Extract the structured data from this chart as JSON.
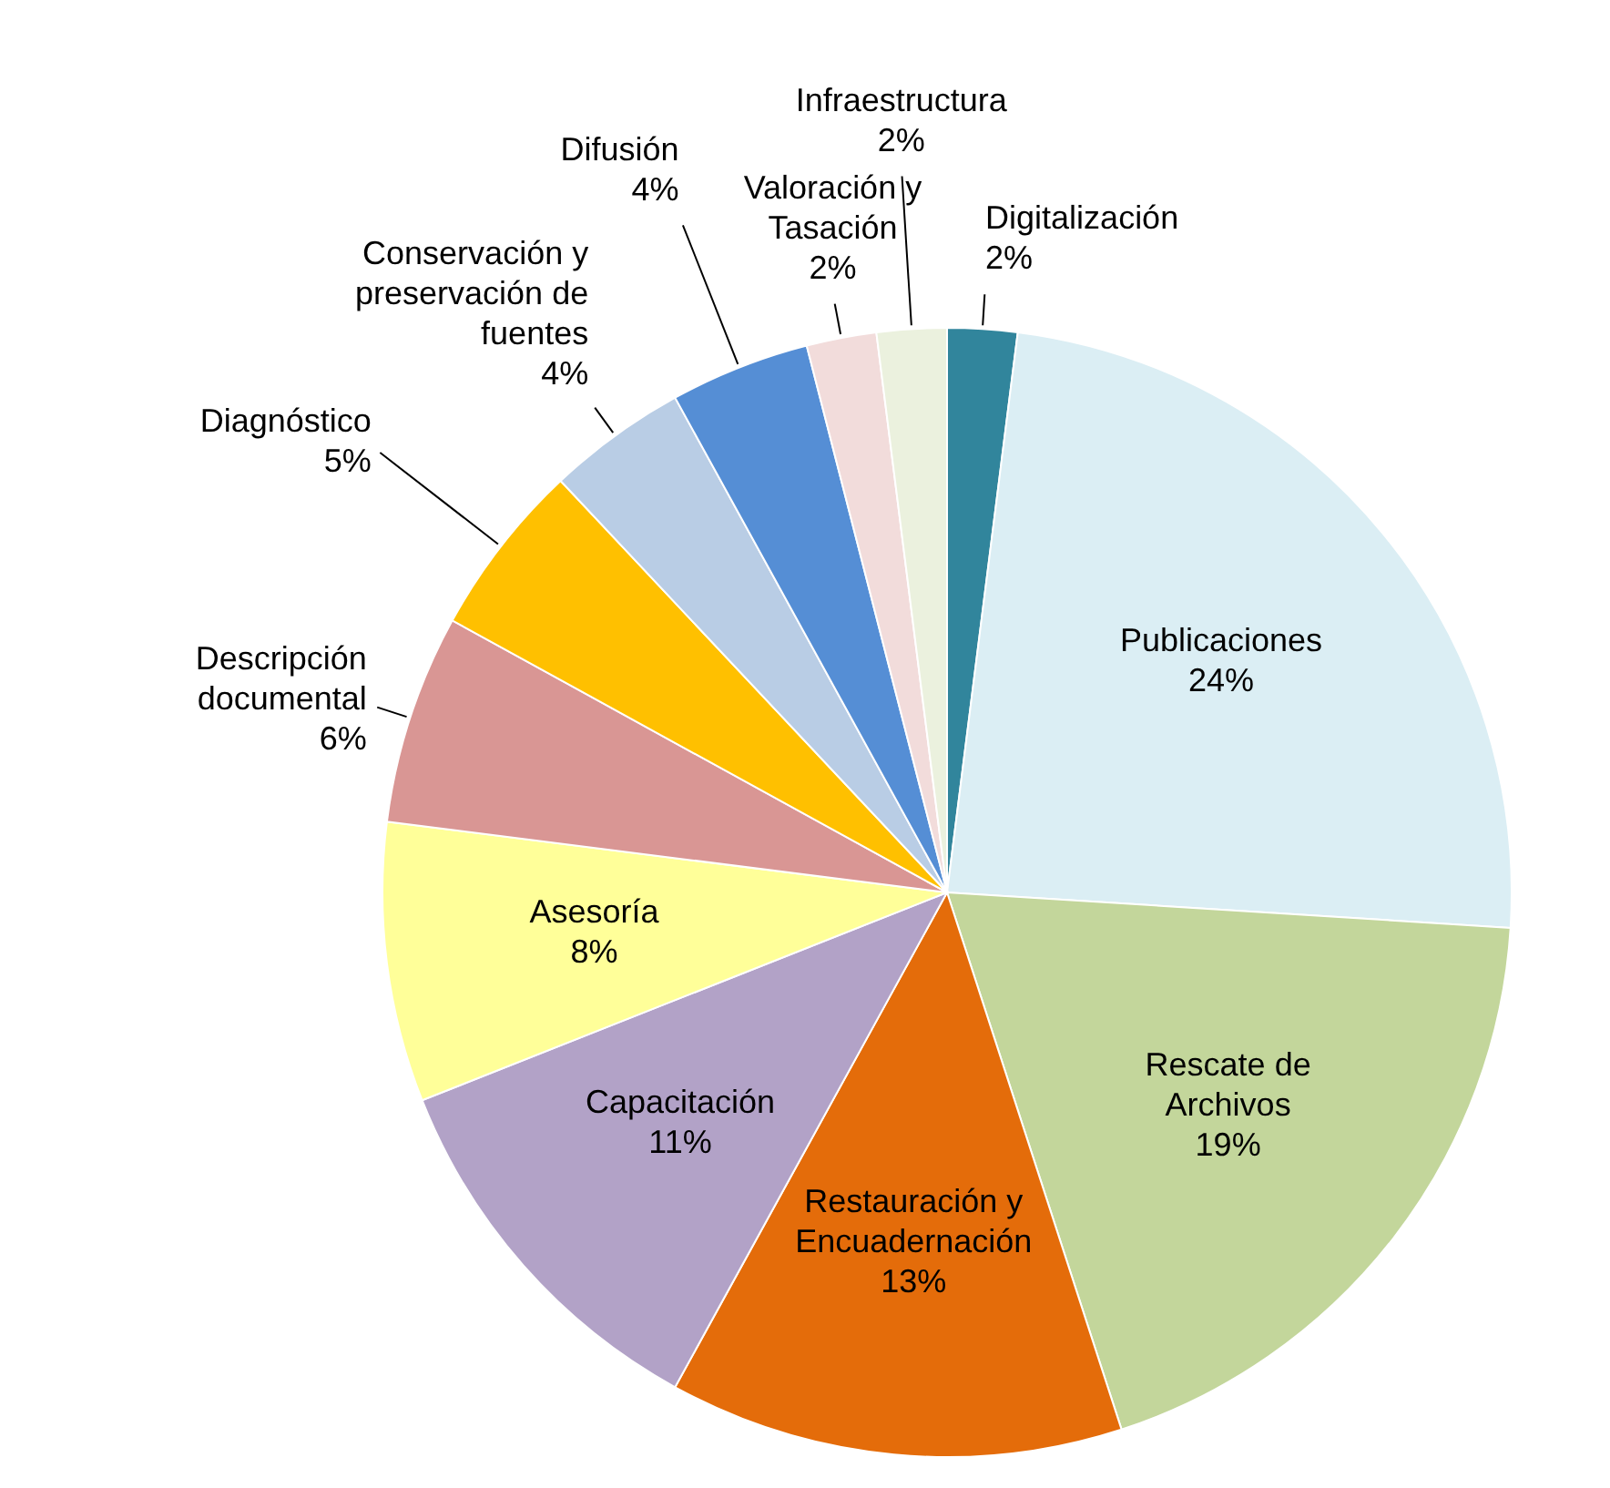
{
  "chart_data": {
    "type": "pie",
    "categories": [
      "Digitalización",
      "Publicaciones",
      "Rescate de Archivos",
      "Restauración y Encuadernación",
      "Capacitación",
      "Asesoría",
      "Descripción documental",
      "Diagnóstico",
      "Conservación y preservación de fuentes",
      "Difusión",
      "Valoración y Tasación",
      "Infraestructura"
    ],
    "values": [
      2,
      24,
      19,
      13,
      11,
      8,
      6,
      5,
      4,
      4,
      2,
      2
    ],
    "value_labels": [
      "2%",
      "24%",
      "19%",
      "13%",
      "11%",
      "8%",
      "6%",
      "5%",
      "4%",
      "4%",
      "2%",
      "2%"
    ],
    "colors": [
      "#31859c",
      "#dbeef4",
      "#c3d69b",
      "#e46c0a",
      "#b2a2c7",
      "#ffff99",
      "#d99694",
      "#ffc000",
      "#b9cde5",
      "#558ed5",
      "#f2dcdb",
      "#ebf1de"
    ]
  }
}
